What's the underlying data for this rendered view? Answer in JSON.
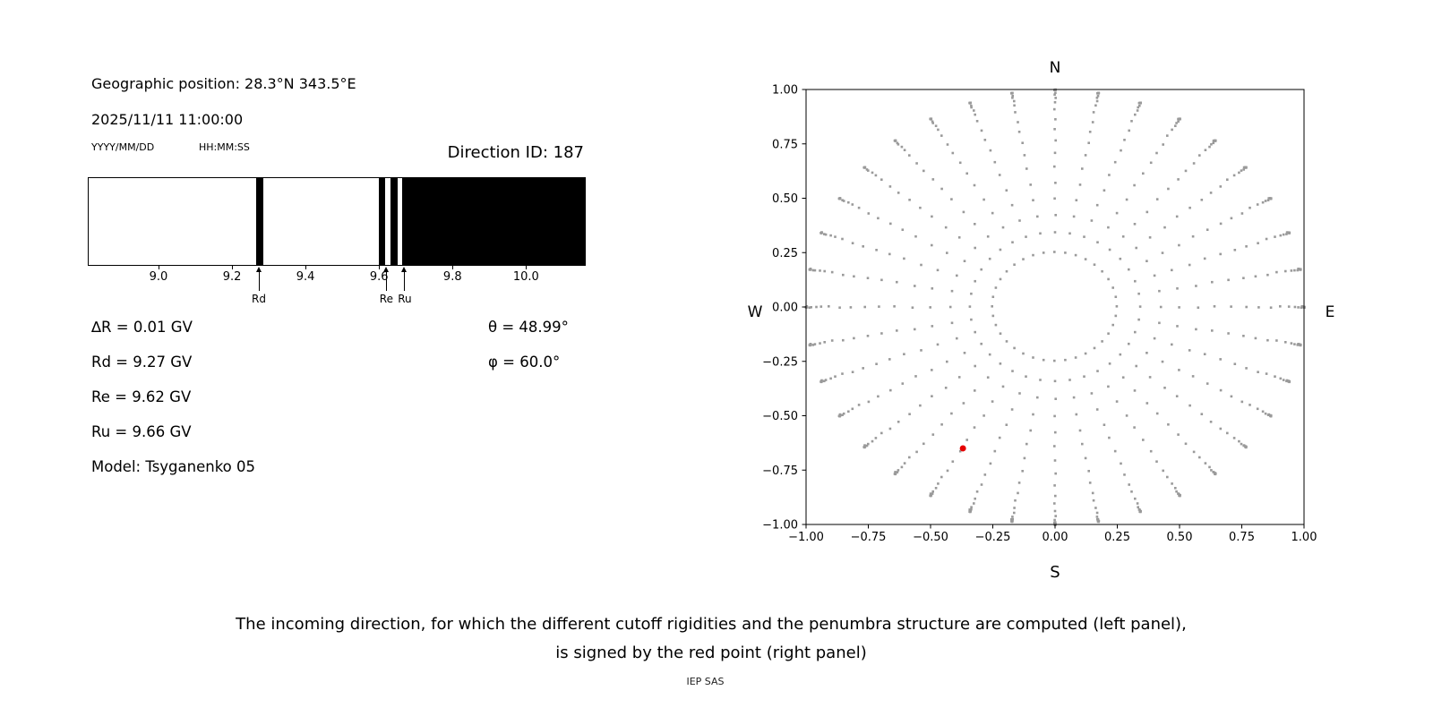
{
  "header": {
    "geographic_position": "Geographic position: 28.3°N 343.5°E",
    "datetime": "2025/11/11 11:00:00",
    "date_format": "YYYY/MM/DD",
    "time_format": "HH:MM:SS",
    "direction_id": "Direction ID: 187"
  },
  "left_panel": {
    "delta_r": "∆R = 0.01 GV",
    "rd": "Rd = 9.27 GV",
    "re": "Re = 9.62 GV",
    "ru": "Ru = 9.66 GV",
    "model": "Model: Tsyganenko 05",
    "theta": "θ = 48.99°",
    "phi": "φ = 60.0°"
  },
  "caption": {
    "line1": "The incoming direction, for which the different cutoff rigidities and the penumbra structure are computed (left panel),",
    "line2": "is signed by the red point (right panel)",
    "credit": "IEP SAS"
  },
  "chart_data": [
    {
      "type": "bar",
      "title": "Penumbra structure (black = forbidden rigidity bands, GV)",
      "x_range": [
        8.81,
        10.16
      ],
      "xticks": {
        "values": [
          9.0,
          9.2,
          9.4,
          9.6,
          9.8,
          10.0
        ],
        "labels": [
          "9.0",
          "9.2",
          "9.4",
          "9.6",
          "9.8",
          "10.0"
        ]
      },
      "black_bands": [
        [
          9.266,
          9.286
        ],
        [
          9.6,
          9.617
        ],
        [
          9.632,
          9.65
        ],
        [
          9.663,
          10.16
        ]
      ],
      "arrows": [
        {
          "label": "Rd",
          "x": 9.273
        },
        {
          "label": "Re",
          "x": 9.62
        },
        {
          "label": "Ru",
          "x": 9.67
        }
      ]
    },
    {
      "type": "scatter",
      "title": "Asymptotic / incoming direction map",
      "xlim": [
        -1.0,
        1.0
      ],
      "ylim": [
        -1.0,
        1.0
      ],
      "grid": false,
      "compass_labels": {
        "top": "N",
        "bottom": "S",
        "left": "W",
        "right": "E"
      },
      "xticks": {
        "values": [
          -1.0,
          -0.75,
          -0.5,
          -0.25,
          0.0,
          0.25,
          0.5,
          0.75,
          1.0
        ],
        "labels": [
          "−1.00",
          "−0.75",
          "−0.50",
          "−0.25",
          "0.00",
          "0.25",
          "0.50",
          "0.75",
          "1.00"
        ]
      },
      "yticks": {
        "values": [
          -1.0,
          -0.75,
          -0.5,
          -0.25,
          0.0,
          0.25,
          0.5,
          0.75,
          1.0
        ],
        "labels": [
          "−1.00",
          "−0.75",
          "−0.50",
          "−0.25",
          "0.00",
          "0.25",
          "0.50",
          "0.75",
          "1.00"
        ]
      },
      "gray_points": {
        "generator": "radial-spokes",
        "azimuth_step_deg": 10,
        "azimuth_count": 36,
        "zenith_deg": [
          14.5,
          20,
          25,
          30,
          35,
          40,
          45,
          50,
          55,
          60,
          65,
          70,
          74,
          78,
          81,
          84,
          86,
          88,
          89,
          90
        ],
        "radius_mapping": "sin(zenith)",
        "color": "#9a9a9a"
      },
      "red_point": {
        "x": -0.37,
        "y": -0.65,
        "color": "#e50000"
      }
    }
  ]
}
